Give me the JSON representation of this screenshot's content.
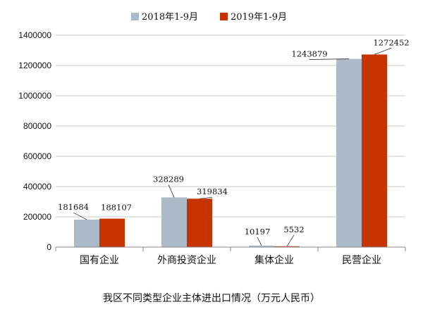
{
  "chart_data": {
    "type": "bar",
    "title": "我区不同类型企业主体进出口情况（万元人民币）",
    "categories": [
      "国有企业",
      "外商投资企业",
      "集体企业",
      "民营企业"
    ],
    "series": [
      {
        "name": "2018年1-9月",
        "values": [
          181684,
          328289,
          10197,
          1243879
        ],
        "color": "#acb9c9"
      },
      {
        "name": "2019年1-9月",
        "values": [
          188107,
          319834,
          5532,
          1272452
        ],
        "color": "#c63300"
      }
    ],
    "yticks": [
      "0",
      "200000",
      "400000",
      "600000",
      "800000",
      "1000000",
      "1200000",
      "1400000"
    ],
    "ylim": [
      0,
      1400000
    ],
    "grid": true,
    "legend_position": "top-center",
    "xlabel": "",
    "ylabel": ""
  }
}
